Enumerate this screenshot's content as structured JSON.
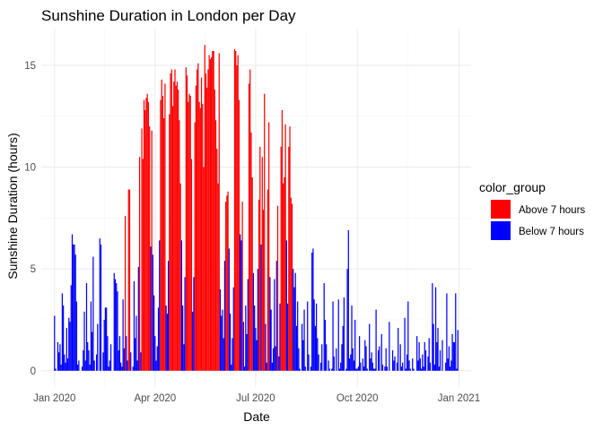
{
  "chart_data": {
    "type": "bar",
    "title": "Sunshine Duration in London per Day",
    "xlabel": "Date",
    "ylabel": "Sunshine Duration (hours)",
    "x_ticks": [
      "Jan 2020",
      "Apr 2020",
      "Jul 2020",
      "Oct 2020",
      "Jan 2021"
    ],
    "y_ticks": [
      "0",
      "5",
      "10",
      "15"
    ],
    "xlim": [
      "2019-12-20",
      "2021-01-12"
    ],
    "ylim": [
      -0.8,
      16.8
    ],
    "grid": true,
    "legend": {
      "title": "color_group",
      "position": "right",
      "entries": [
        {
          "label": "Above 7 hours",
          "color": "#ff0000"
        },
        {
          "label": "Below 7 hours",
          "color": "#0000ff"
        }
      ]
    },
    "threshold_hours": 7,
    "start_date": "2020-01-01",
    "values": [
      2.7,
      0.1,
      0.0,
      1.4,
      0.9,
      1.3,
      0.3,
      3.8,
      3.2,
      0.8,
      0.4,
      2.1,
      0.6,
      2.6,
      2.4,
      4.2,
      6.7,
      6.2,
      6.2,
      5.7,
      3.4,
      0.3,
      0.5,
      0.0,
      0.0,
      0.2,
      1.0,
      2.9,
      0.5,
      4.3,
      1.4,
      1.0,
      0.3,
      3.4,
      1.9,
      5.6,
      0.5,
      0.0,
      0.8,
      2.3,
      0.0,
      6.5,
      6.2,
      0.0,
      0.9,
      2.5,
      3.1,
      3.1,
      1.7,
      0.2,
      0.5,
      1.3,
      0.0,
      0.0,
      4.8,
      4.5,
      4.3,
      3.9,
      1.0,
      1.7,
      0.4,
      0.2,
      3.5,
      1.1,
      7.6,
      1.7,
      0.5,
      8.9,
      8.9,
      0.9,
      0.0,
      0.2,
      4.4,
      1.6,
      2.7,
      0.5,
      5.1,
      10.5,
      0.9,
      11.9,
      10.4,
      13.3,
      12.8,
      13.4,
      13.6,
      13.2,
      12.0,
      6.1,
      11.8,
      5.7,
      3.7,
      1.7,
      0.5,
      1.2,
      3.1,
      6.4,
      13.3,
      14.3,
      13.5,
      12.4,
      14.1,
      3.2,
      2.8,
      5.4,
      12.6,
      14.6,
      14.8,
      13.0,
      14.2,
      14.8,
      14.0,
      14.2,
      13.8,
      12.3,
      9.2,
      6.4,
      3.2,
      1.3,
      4.6,
      14.9,
      14.5,
      13.2,
      13.6,
      13.5,
      10.4,
      2.9,
      4.6,
      12.2,
      14.0,
      14.8,
      15.1,
      13.2,
      12.9,
      14.4,
      13.1,
      10.0,
      16.0,
      14.6,
      13.9,
      14.8,
      15.5,
      15.3,
      15.4,
      15.7,
      15.7,
      13.8,
      12.3,
      10.9,
      9.2,
      15.6,
      4.0,
      2.7,
      3.0,
      1.6,
      5.4,
      8.3,
      8.6,
      8.8,
      6.0,
      2.8,
      0.3,
      1.6,
      4.1,
      15.8,
      15.7,
      15.0,
      15.5,
      13.3,
      6.7,
      6.4,
      8.3,
      2.4,
      0.2,
      3.2,
      1.8,
      4.5,
      14.1,
      14.8,
      11.7,
      9.5,
      4.8,
      3.2,
      2.1,
      1.5,
      5.0,
      8.4,
      11.0,
      6.2,
      10.5,
      7.9,
      13.6,
      2.3,
      0.4,
      8.9,
      12.2,
      4.6,
      3.0,
      0.4,
      1.1,
      4.5,
      1.2,
      5.4,
      8.1,
      0.7,
      3.3,
      11.0,
      12.8,
      9.2,
      9.5,
      12.1,
      6.4,
      3.3,
      11.0,
      12.0,
      8.5,
      8.2,
      5.0,
      4.1,
      4.8,
      2.2,
      3.4,
      1.1,
      0.1,
      0.0,
      2.3,
      1.5,
      3.0,
      0.2,
      0.0,
      3.4,
      0.8,
      0.0,
      0.2,
      5.8,
      6.0,
      3.5,
      2.2,
      3.3,
      1.6,
      0.8,
      0.0,
      0.4,
      1.3,
      0.0,
      4.3,
      2.5,
      1.3,
      0.0,
      0.5,
      0.1,
      0.0,
      0.1,
      3.4,
      0.7,
      0.0,
      1.1,
      0.0,
      3.5,
      0.1,
      0.4,
      1.3,
      2.2,
      3.6,
      0.0,
      0.1,
      5.0,
      6.9,
      0.6,
      0.8,
      3.2,
      1.1,
      0.5,
      2.5,
      0.1,
      0.1,
      0.2,
      1.7,
      0.4,
      0.0,
      0.6,
      0.2,
      1.5,
      1.2,
      0.1,
      0.0,
      2.3,
      0.6,
      0.9,
      0.4,
      0.1,
      0.1,
      3.0,
      0.0,
      1.0,
      1.2,
      0.0,
      1.8,
      0.3,
      0.0,
      0.2,
      1.1,
      0.2,
      0.0,
      2.4,
      0.0,
      0.0,
      1.0,
      0.5,
      0.7,
      0.0,
      0.4,
      2.1,
      0.0,
      1.3,
      0.2,
      0.4,
      0.0,
      2.6,
      0.1,
      0.8,
      3.4,
      0.5,
      0.1,
      0.0,
      0.6,
      0.1,
      0.0,
      0.0,
      1.7,
      0.5,
      1.4,
      0.6,
      0.1,
      0.8,
      0.2,
      1.4,
      1.0,
      0.0,
      0.7,
      1.6,
      0.4,
      0.0,
      4.3,
      2.3,
      0.3,
      4.1,
      1.4,
      2.1,
      0.2,
      1.0,
      0.0,
      1.5,
      0.0,
      0.0,
      0.4,
      3.8,
      0.6,
      1.2,
      0.2,
      0.5,
      1.8,
      1.4,
      1.4,
      3.8,
      0.1,
      2.0
    ]
  }
}
